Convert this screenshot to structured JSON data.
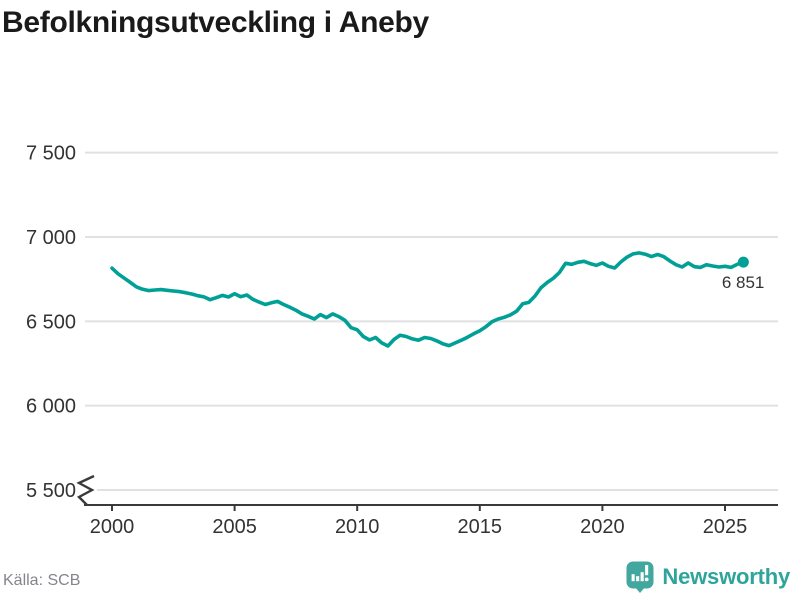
{
  "title": "Befolkningsutveckling i Aneby",
  "source": "Källa: SCB",
  "footer": {
    "brand": "Newsworthy",
    "brand_icon": "newsworthy-bar-chart-bubble"
  },
  "colors": {
    "line": "#00a096",
    "dot": "#00a096",
    "grid": "#e1e1e1",
    "axis": "#3a3a3a",
    "ticktext": "#333333",
    "title": "#1a1a1a",
    "muted": "#84848c",
    "brand": "#2ea49b",
    "brand_icon": "#42a79f"
  },
  "chart_data": {
    "type": "line",
    "title": "Befolkningsutveckling i Aneby",
    "xlabel": "",
    "ylabel": "",
    "x_start": 2000,
    "x_step": 0.25,
    "x_ticks": [
      2000,
      2005,
      2010,
      2015,
      2020,
      2025
    ],
    "x_tick_labels": [
      "2000",
      "2005",
      "2010",
      "2015",
      "2020",
      "2025"
    ],
    "y_ticks": [
      5500,
      6000,
      6500,
      7000,
      7500
    ],
    "y_tick_labels": [
      "5 500",
      "6 000",
      "6 500",
      "7 000",
      "7 500"
    ],
    "ylim": [
      5500,
      7500
    ],
    "axis_break": true,
    "grid": true,
    "legend": false,
    "last_value": 6851,
    "last_value_label": "6 851",
    "series": [
      {
        "values": [
          6815,
          6782,
          6756,
          6730,
          6704,
          6690,
          6682,
          6686,
          6688,
          6684,
          6680,
          6676,
          6670,
          6662,
          6652,
          6645,
          6628,
          6640,
          6654,
          6644,
          6664,
          6646,
          6656,
          6630,
          6614,
          6600,
          6610,
          6618,
          6600,
          6584,
          6566,
          6544,
          6530,
          6514,
          6540,
          6522,
          6544,
          6528,
          6506,
          6462,
          6450,
          6410,
          6390,
          6404,
          6372,
          6354,
          6392,
          6418,
          6410,
          6396,
          6388,
          6404,
          6398,
          6384,
          6366,
          6356,
          6372,
          6388,
          6406,
          6426,
          6444,
          6468,
          6498,
          6514,
          6524,
          6538,
          6560,
          6604,
          6612,
          6650,
          6700,
          6730,
          6756,
          6790,
          6844,
          6838,
          6850,
          6856,
          6842,
          6832,
          6846,
          6826,
          6816,
          6852,
          6880,
          6900,
          6906,
          6898,
          6884,
          6896,
          6884,
          6858,
          6836,
          6822,
          6846,
          6824,
          6820,
          6836,
          6828,
          6822,
          6826,
          6820,
          6838,
          6851
        ]
      }
    ]
  }
}
